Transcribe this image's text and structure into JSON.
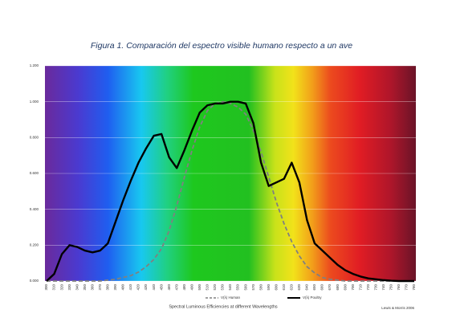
{
  "chart_data": {
    "type": "line",
    "title": "Figura 1. Comparación del espectro visible humano respecto a un ave",
    "xlabel": "Spectral Luminous Efficiencies at different Wavelengths",
    "source": "Lewis & Morris 2006",
    "categories": [
      "300",
      "310",
      "320",
      "330",
      "340",
      "350",
      "360",
      "370",
      "380",
      "390",
      "400",
      "410",
      "420",
      "430",
      "440",
      "450",
      "460",
      "470",
      "480",
      "490",
      "500",
      "510",
      "520",
      "530",
      "540",
      "550",
      "560",
      "570",
      "580",
      "590",
      "600",
      "610",
      "620",
      "630",
      "640",
      "650",
      "660",
      "670",
      "680",
      "690",
      "700",
      "710",
      "720",
      "730",
      "740",
      "750",
      "760",
      "770",
      "780"
    ],
    "series": [
      {
        "name": "V(λ) Human",
        "color": "#808080",
        "dashed": true,
        "values": [
          0,
          0,
          0,
          0,
          0,
          0,
          0,
          0,
          0.005,
          0.01,
          0.02,
          0.03,
          0.05,
          0.08,
          0.12,
          0.18,
          0.28,
          0.42,
          0.58,
          0.73,
          0.86,
          0.95,
          0.99,
          1.0,
          0.99,
          0.97,
          0.93,
          0.84,
          0.72,
          0.58,
          0.44,
          0.32,
          0.22,
          0.14,
          0.08,
          0.045,
          0.02,
          0.01,
          0.005,
          0,
          0,
          0,
          0,
          0,
          0,
          0,
          0,
          0,
          0
        ]
      },
      {
        "name": "V(λ) Poultry",
        "color": "#000000",
        "dashed": false,
        "values": [
          0,
          0.04,
          0.15,
          0.2,
          0.19,
          0.17,
          0.16,
          0.17,
          0.21,
          0.33,
          0.45,
          0.56,
          0.66,
          0.74,
          0.81,
          0.82,
          0.69,
          0.63,
          0.73,
          0.84,
          0.94,
          0.98,
          0.99,
          0.99,
          1.0,
          1.0,
          0.99,
          0.88,
          0.66,
          0.53,
          0.55,
          0.57,
          0.66,
          0.55,
          0.34,
          0.21,
          0.17,
          0.13,
          0.09,
          0.06,
          0.04,
          0.025,
          0.015,
          0.01,
          0.005,
          0.002,
          0,
          0,
          0
        ]
      }
    ],
    "ylim": [
      0,
      1.2
    ],
    "yticks": [
      {
        "value": 0,
        "label": "0.000"
      },
      {
        "value": 0.2,
        "label": "0.200"
      },
      {
        "value": 0.4,
        "label": "0.400"
      },
      {
        "value": 0.6,
        "label": "0.600"
      },
      {
        "value": 0.8,
        "label": "0.800"
      },
      {
        "value": 1,
        "label": "1.000"
      },
      {
        "value": 1.2,
        "label": "1.200"
      }
    ],
    "grid": true
  }
}
